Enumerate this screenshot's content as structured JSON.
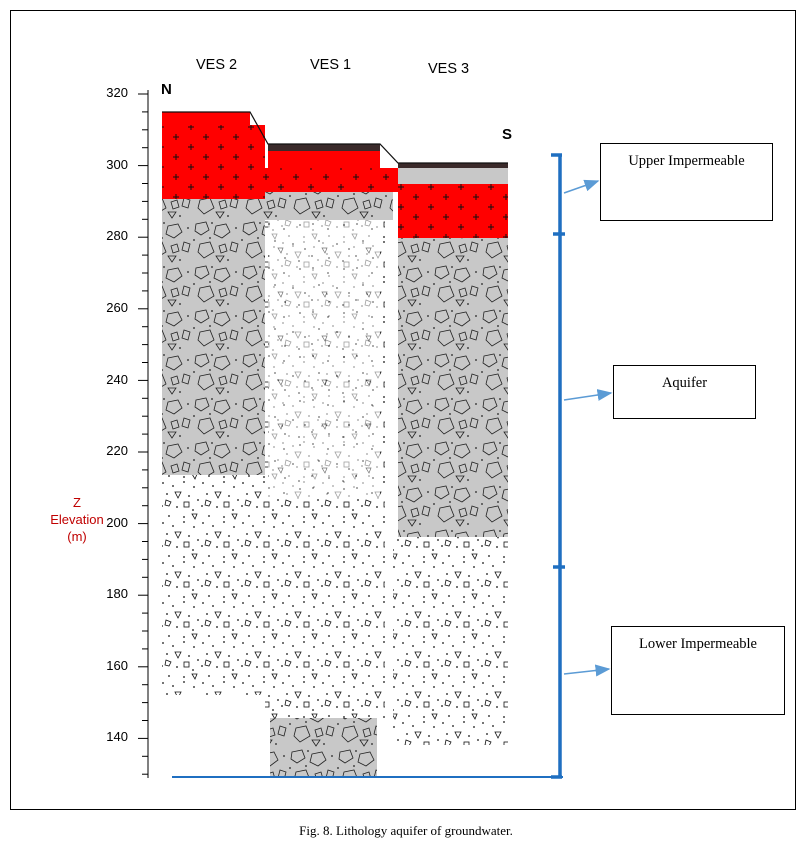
{
  "headers": {
    "ves2": "VES 2",
    "ves1": "VES 1",
    "ves3": "VES 3"
  },
  "directions": {
    "north": "N",
    "south": "S"
  },
  "y_axis": {
    "label_line1": "Z",
    "label_line2": "Elevation",
    "label_line3": "(m)",
    "label_color": "#c00000",
    "ticks": [
      "320",
      "300",
      "280",
      "260",
      "240",
      "220",
      "200",
      "180",
      "160",
      "140"
    ]
  },
  "legend_boxes": {
    "upper": "Upper Impermeable",
    "aquifer": "Aquifer",
    "lower": "Lower Impermeable"
  },
  "caption": "Fig. 8.  Lithology aquifer of groundwater.",
  "colors": {
    "clay_red": "#ff0000",
    "gravel_gray": "#c8c8c8",
    "topsoil": "#3a2a2a",
    "bracket_blue": "#1f6fc1",
    "arrow_blue": "#5b9bd5"
  }
}
